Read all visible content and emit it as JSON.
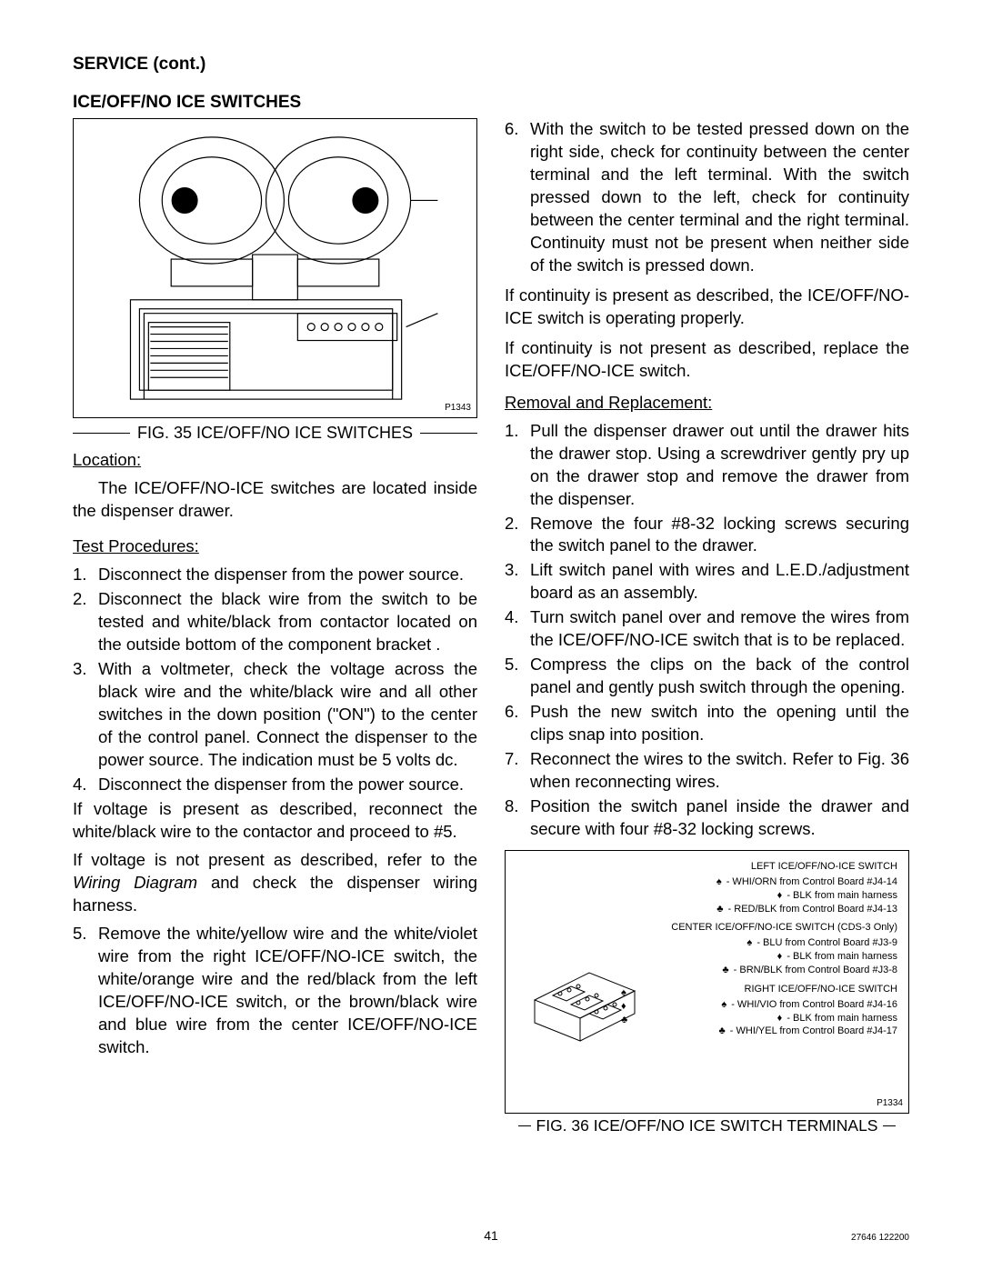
{
  "header": "SERVICE (cont.)",
  "section_title": "ICE/OFF/NO ICE SWITCHES",
  "fig35": {
    "caption": "FIG. 35 ICE/OFF/NO ICE SWITCHES",
    "code": "P1343"
  },
  "left": {
    "location_label": "Location:",
    "location_text": "The ICE/OFF/NO-ICE switches are located inside the dispenser drawer.",
    "test_label": "Test Procedures:",
    "steps": [
      "Disconnect the dispenser from the power source.",
      "Disconnect the black wire from the switch to be tested and white/black from contactor located on the outside bottom of the component bracket .",
      "With a voltmeter, check the voltage across the black wire and the white/black wire and all other switches in the down position (\"ON\") to the center of the control panel. Connect the dispenser to the power source. The indication must be 5 volts dc.",
      "Disconnect the dispenser from the power source."
    ],
    "after4a": "If voltage is present as described, reconnect the white/black wire to the contactor and proceed to #5.",
    "after4b_pre": "If voltage is not present as described, refer to the ",
    "after4b_italic": "Wiring Diagram",
    "after4b_post": " and check the dispenser wiring harness.",
    "step5": "Remove the white/yellow wire and the white/violet wire from the right ICE/OFF/NO-ICE switch, the white/orange wire and the red/black from the left ICE/OFF/NO-ICE switch, or the brown/black wire and blue wire from the center ICE/OFF/NO-ICE switch."
  },
  "right": {
    "step6": "With the switch to be tested pressed down on the right side, check for continuity between the center terminal and the left terminal. With the switch pressed down to the left, check for continuity between the center terminal and the right terminal. Continuity must not be present when neither side of the switch is pressed down.",
    "cont_ok": "If continuity is present as described, the ICE/OFF/NO-ICE switch is operating properly.",
    "cont_bad": "If continuity is not present as described, replace the ICE/OFF/NO-ICE switch.",
    "removal_label": "Removal and Replacement:",
    "removal_steps": [
      "Pull the dispenser drawer out until the drawer hits the drawer stop. Using a screwdriver gently pry up on the drawer stop and remove the drawer from the dispenser.",
      "Remove the four #8-32 locking screws securing the switch panel to the drawer.",
      "Lift switch panel with wires and L.E.D./adjustment board as an assembly.",
      "Turn switch panel over and remove the wires from the ICE/OFF/NO-ICE switch that is to be replaced.",
      "Compress the clips on the back of the control panel and gently push switch through the opening.",
      "Push the new switch into the opening until the clips snap into position.",
      "Reconnect the wires to the switch. Refer to Fig. 36 when reconnecting wires.",
      "Position the switch panel inside the drawer and secure with four #8-32 locking screws."
    ]
  },
  "fig36": {
    "caption": "FIG. 36 ICE/OFF/NO ICE SWITCH TERMINALS",
    "code": "P1334",
    "groups": [
      {
        "title": "LEFT ICE/OFF/NO-ICE SWITCH",
        "lines": [
          {
            "sym": "♠",
            "text": " - WHI/ORN from Control Board #J4-14"
          },
          {
            "sym": "♦",
            "text": " - BLK from main harness"
          },
          {
            "sym": "♣",
            "text": " - RED/BLK from Control Board #J4-13"
          }
        ]
      },
      {
        "title": "CENTER ICE/OFF/NO-ICE SWITCH (CDS-3 Only)",
        "lines": [
          {
            "sym": "♠",
            "text": " - BLU from Control Board #J3-9"
          },
          {
            "sym": "♦",
            "text": " - BLK from main harness"
          },
          {
            "sym": "♣",
            "text": " - BRN/BLK from Control Board #J3-8"
          }
        ]
      },
      {
        "title": "RIGHT ICE/OFF/NO-ICE SWITCH",
        "lines": [
          {
            "sym": "♠",
            "text": " - WHI/VIO from Control Board #J4-16"
          },
          {
            "sym": "♦",
            "text": " - BLK from main harness"
          },
          {
            "sym": "♣",
            "text": " - WHI/YEL from Control Board #J4-17"
          }
        ]
      }
    ]
  },
  "page_number": "41",
  "doc_code": "27646 122200"
}
